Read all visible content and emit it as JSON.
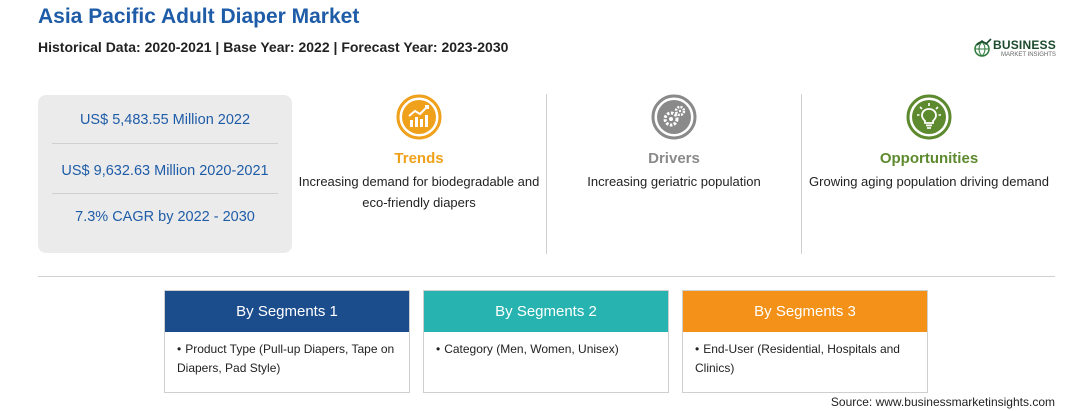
{
  "header": {
    "title": "Asia Pacific Adult Diaper Market",
    "subtitle": "Historical Data: 2020-2021 | Base Year: 2022 | Forecast Year: 2023-2030"
  },
  "logo": {
    "name": "BUSINESS",
    "tagline": "MARKET INSIGHTS"
  },
  "stats": [
    "US$ 5,483.55 Million 2022",
    "US$ 9,632.63 Million 2020-2021",
    "7.3% CAGR by 2022 - 2030"
  ],
  "features": [
    {
      "title": "Trends",
      "description": "Increasing demand for biodegradable and eco-friendly diapers",
      "icon": "trending-chart-icon",
      "color": "#f0a11c"
    },
    {
      "title": "Drivers",
      "description": "Increasing geriatric population",
      "icon": "gears-icon",
      "color": "#8a8a8a"
    },
    {
      "title": "Opportunities",
      "description": "Growing aging population driving demand",
      "icon": "lightbulb-icon",
      "color": "#5d8a2e"
    }
  ],
  "segments": [
    {
      "title": "By Segments 1",
      "color": "#1b4c8c",
      "items": [
        "Product Type (Pull-up Diapers, Tape on Diapers, Pad Style)"
      ]
    },
    {
      "title": "By Segments 2",
      "color": "#27b3b0",
      "items": [
        "Category (Men, Women, Unisex)"
      ]
    },
    {
      "title": "By Segments 3",
      "color": "#f39118",
      "items": [
        "End-User (Residential, Hospitals and Clinics)"
      ]
    }
  ],
  "bullet": "•",
  "source": "Source: www.businessmarketinsights.com"
}
